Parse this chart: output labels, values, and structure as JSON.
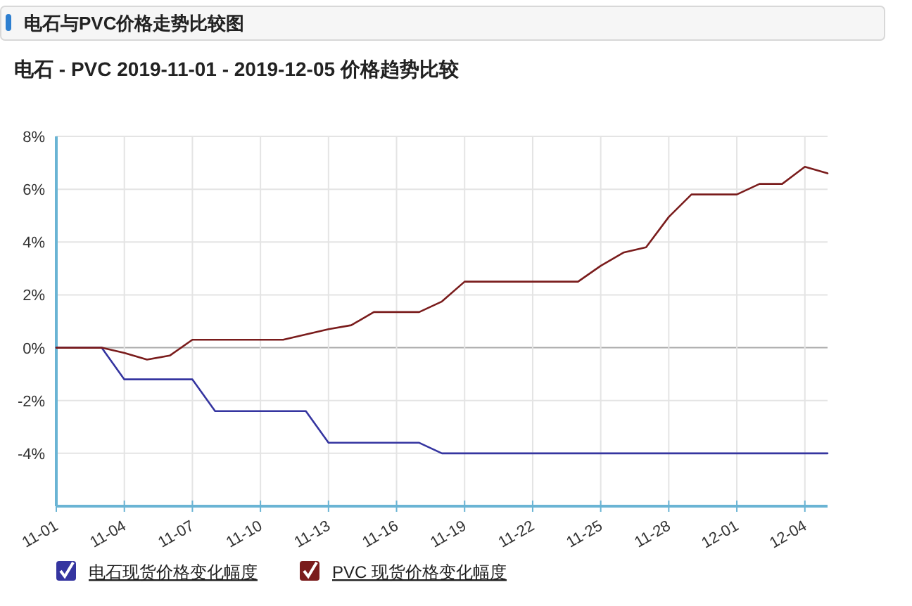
{
  "chart_data": {
    "type": "line",
    "title": "电石与PVC价格走势比较图",
    "subtitle": "电石 - PVC 2019-11-01 - 2019-12-05 价格趋势比较",
    "x": [
      "2019-11-01",
      "2019-11-02",
      "2019-11-03",
      "2019-11-04",
      "2019-11-05",
      "2019-11-06",
      "2019-11-07",
      "2019-11-08",
      "2019-11-09",
      "2019-11-10",
      "2019-11-11",
      "2019-11-12",
      "2019-11-13",
      "2019-11-14",
      "2019-11-15",
      "2019-11-16",
      "2019-11-17",
      "2019-11-18",
      "2019-11-19",
      "2019-11-20",
      "2019-11-21",
      "2019-11-22",
      "2019-11-23",
      "2019-11-24",
      "2019-11-25",
      "2019-11-26",
      "2019-11-27",
      "2019-11-28",
      "2019-11-29",
      "2019-11-30",
      "2019-12-01",
      "2019-12-02",
      "2019-12-03",
      "2019-12-04",
      "2019-12-05"
    ],
    "series": [
      {
        "name": "电石现货价格变化幅度",
        "color": "#3535a0",
        "values": [
          0,
          0,
          0,
          -1.2,
          -1.2,
          -1.2,
          -1.2,
          -2.4,
          -2.4,
          -2.4,
          -2.4,
          -2.4,
          -3.6,
          -3.6,
          -3.6,
          -3.6,
          -3.6,
          -4.0,
          -4.0,
          -4.0,
          -4.0,
          -4.0,
          -4.0,
          -4.0,
          -4.0,
          -4.0,
          -4.0,
          -4.0,
          -4.0,
          -4.0,
          -4.0,
          -4.0,
          -4.0,
          -4.0,
          -4.0
        ]
      },
      {
        "name": "PVC 现货价格变化幅度",
        "color": "#7a1c1c",
        "values": [
          0,
          0,
          0,
          -0.2,
          -0.45,
          -0.3,
          0.3,
          0.3,
          0.3,
          0.3,
          0.3,
          0.5,
          0.7,
          0.85,
          1.35,
          1.35,
          1.35,
          1.75,
          2.5,
          2.5,
          2.5,
          2.5,
          2.5,
          2.5,
          3.1,
          3.6,
          3.8,
          4.95,
          5.8,
          5.8,
          5.8,
          6.2,
          6.2,
          6.85,
          6.6
        ]
      }
    ],
    "xlim": [
      "2019-11-01",
      "2019-12-05"
    ],
    "xticks": [
      {
        "value": "2019-11-01",
        "label": "11-01"
      },
      {
        "value": "2019-11-04",
        "label": "11-04"
      },
      {
        "value": "2019-11-07",
        "label": "11-07"
      },
      {
        "value": "2019-11-10",
        "label": "11-10"
      },
      {
        "value": "2019-11-13",
        "label": "11-13"
      },
      {
        "value": "2019-11-16",
        "label": "11-16"
      },
      {
        "value": "2019-11-19",
        "label": "11-19"
      },
      {
        "value": "2019-11-22",
        "label": "11-22"
      },
      {
        "value": "2019-11-25",
        "label": "11-25"
      },
      {
        "value": "2019-11-28",
        "label": "11-28"
      },
      {
        "value": "2019-12-01",
        "label": "12-01"
      },
      {
        "value": "2019-12-04",
        "label": "12-04"
      }
    ],
    "ylim": [
      -6,
      8
    ],
    "yticks": [
      {
        "value": -4,
        "label": "-4%"
      },
      {
        "value": -2,
        "label": "-2%"
      },
      {
        "value": 0,
        "label": "0%"
      },
      {
        "value": 2,
        "label": "2%"
      },
      {
        "value": 4,
        "label": "4%"
      },
      {
        "value": 6,
        "label": "6%"
      },
      {
        "value": 8,
        "label": "8%"
      }
    ],
    "grid": true,
    "legend": "bottom",
    "marker": "none",
    "line_style": "solid"
  }
}
